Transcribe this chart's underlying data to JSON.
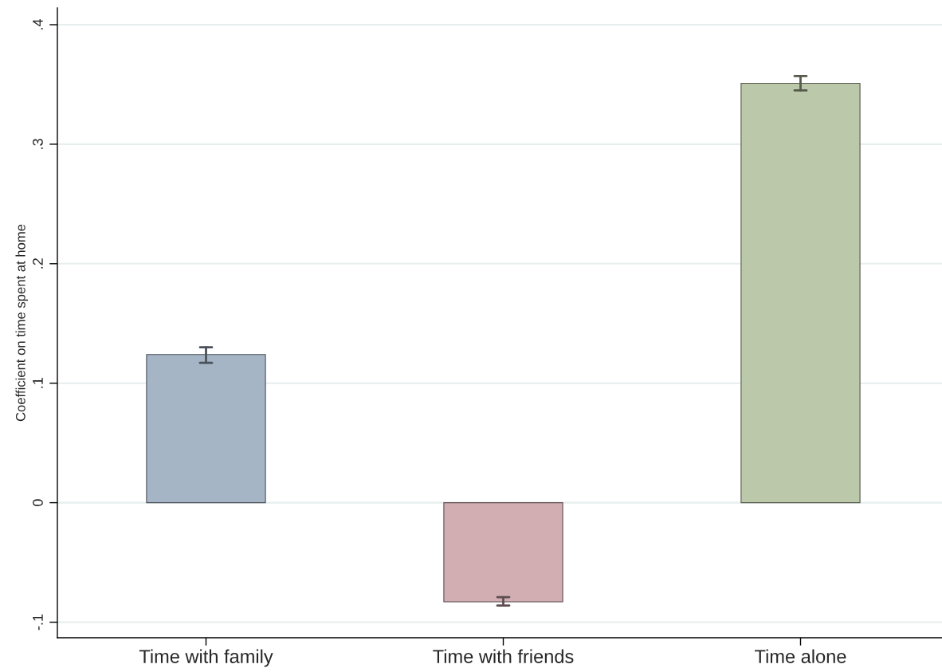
{
  "chart_data": {
    "type": "bar",
    "ylabel": "Coefficient on time spent at home",
    "categories": [
      "Time with family",
      "Time with friends",
      "Time alone"
    ],
    "values": [
      0.124,
      -0.083,
      0.351
    ],
    "errors": [
      [
        0.117,
        0.13
      ],
      [
        -0.086,
        -0.079
      ],
      [
        0.345,
        0.357
      ]
    ],
    "colors": [
      "#a6b5c6",
      "#d2aeb2",
      "#bcc8aa"
    ],
    "ylim": [
      -0.113,
      0.414
    ],
    "yticks": [
      {
        "value": -0.1,
        "label": "-.1"
      },
      0,
      {
        "value": 0.1,
        "label": ".1"
      },
      {
        "value": 0.2,
        "label": ".2"
      },
      {
        "value": 0.3,
        "label": ".3"
      },
      {
        "value": 0.4,
        "label": ".4"
      }
    ],
    "grid": "y"
  }
}
